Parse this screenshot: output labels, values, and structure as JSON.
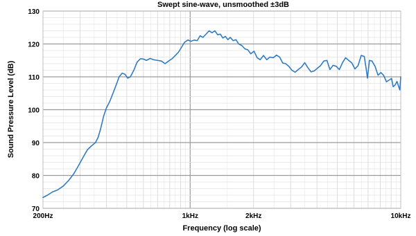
{
  "chart_data": {
    "type": "line",
    "title": "Swept sine-wave, unsmoothed ±3dB",
    "xlabel": "Frequency (log scale)",
    "ylabel": "Sound Pressure Level (dB)",
    "x_scale": "log",
    "xlim": [
      200,
      10000
    ],
    "ylim": [
      70,
      130
    ],
    "grid": true,
    "legend": "none",
    "y_ticks": [
      {
        "value": 70,
        "label": "70"
      },
      {
        "value": 80,
        "label": "80"
      },
      {
        "value": 90,
        "label": "90"
      },
      {
        "value": 100,
        "label": "100"
      },
      {
        "value": 110,
        "label": "110"
      },
      {
        "value": 120,
        "label": "120"
      },
      {
        "value": 130,
        "label": "130"
      }
    ],
    "x_ticks": [
      {
        "value": 200,
        "label": "200Hz"
      },
      {
        "value": 1000,
        "label": "1kHz"
      },
      {
        "value": 2000,
        "label": "2kHz"
      },
      {
        "value": 10000,
        "label": "10kHz"
      }
    ],
    "series": [
      {
        "color": "#2e7bc4",
        "points": [
          [
            200,
            73.3
          ],
          [
            210,
            74
          ],
          [
            222,
            75
          ],
          [
            235,
            75.6
          ],
          [
            250,
            76.8
          ],
          [
            265,
            78.5
          ],
          [
            280,
            80.5
          ],
          [
            295,
            83
          ],
          [
            310,
            85.5
          ],
          [
            325,
            87.8
          ],
          [
            340,
            89
          ],
          [
            355,
            90
          ],
          [
            365,
            91.5
          ],
          [
            375,
            94
          ],
          [
            388,
            98
          ],
          [
            400,
            100.5
          ],
          [
            415,
            102.5
          ],
          [
            430,
            105
          ],
          [
            445,
            107.5
          ],
          [
            460,
            110
          ],
          [
            475,
            111.1
          ],
          [
            490,
            110.8
          ],
          [
            505,
            109.6
          ],
          [
            520,
            110
          ],
          [
            540,
            112
          ],
          [
            560,
            114.5
          ],
          [
            580,
            115.5
          ],
          [
            600,
            115.4
          ],
          [
            620,
            115
          ],
          [
            645,
            115.6
          ],
          [
            670,
            115.2
          ],
          [
            700,
            115
          ],
          [
            730,
            114.8
          ],
          [
            760,
            114
          ],
          [
            790,
            114.8
          ],
          [
            820,
            115.5
          ],
          [
            850,
            116.5
          ],
          [
            880,
            117.5
          ],
          [
            910,
            119
          ],
          [
            940,
            120.5
          ],
          [
            975,
            121.2
          ],
          [
            1010,
            120.8
          ],
          [
            1045,
            121.2
          ],
          [
            1080,
            121
          ],
          [
            1115,
            122.5
          ],
          [
            1150,
            122
          ],
          [
            1190,
            123
          ],
          [
            1230,
            124
          ],
          [
            1270,
            123.4
          ],
          [
            1310,
            124
          ],
          [
            1350,
            122.8
          ],
          [
            1390,
            123
          ],
          [
            1430,
            121.8
          ],
          [
            1470,
            122.3
          ],
          [
            1510,
            121.3
          ],
          [
            1550,
            122
          ],
          [
            1600,
            121
          ],
          [
            1650,
            121.3
          ],
          [
            1700,
            120
          ],
          [
            1760,
            119.5
          ],
          [
            1820,
            118.5
          ],
          [
            1880,
            118.2
          ],
          [
            1940,
            117
          ],
          [
            2010,
            117.8
          ],
          [
            2080,
            115.8
          ],
          [
            2150,
            115.2
          ],
          [
            2230,
            116.5
          ],
          [
            2310,
            115.2
          ],
          [
            2390,
            116
          ],
          [
            2480,
            115.8
          ],
          [
            2570,
            116.6
          ],
          [
            2660,
            116
          ],
          [
            2750,
            114.2
          ],
          [
            2840,
            114
          ],
          [
            2940,
            113.2
          ],
          [
            3040,
            112
          ],
          [
            3150,
            111.4
          ],
          [
            3260,
            112.2
          ],
          [
            3380,
            113
          ],
          [
            3500,
            114.3
          ],
          [
            3620,
            112.8
          ],
          [
            3750,
            111.5
          ],
          [
            3880,
            111.8
          ],
          [
            4020,
            112.6
          ],
          [
            4160,
            113.4
          ],
          [
            4310,
            114.8
          ],
          [
            4460,
            115
          ],
          [
            4610,
            112.2
          ],
          [
            4770,
            113.5
          ],
          [
            4940,
            113.2
          ],
          [
            5110,
            112.2
          ],
          [
            5290,
            114.3
          ],
          [
            5470,
            115.8
          ],
          [
            5660,
            115
          ],
          [
            5860,
            114.2
          ],
          [
            6060,
            112.4
          ],
          [
            6270,
            113.4
          ],
          [
            6490,
            116.5
          ],
          [
            6710,
            116.2
          ],
          [
            6850,
            112.5
          ],
          [
            6950,
            109.6
          ],
          [
            7100,
            115
          ],
          [
            7300,
            114.8
          ],
          [
            7550,
            113.2
          ],
          [
            7800,
            110.5
          ],
          [
            8050,
            111.3
          ],
          [
            8300,
            110.4
          ],
          [
            8550,
            108.5
          ],
          [
            8800,
            109
          ],
          [
            9050,
            109.5
          ],
          [
            9200,
            107
          ],
          [
            9400,
            107.5
          ],
          [
            9600,
            108.6
          ],
          [
            9750,
            107.2
          ],
          [
            9900,
            106
          ],
          [
            10000,
            110
          ]
        ]
      }
    ]
  }
}
